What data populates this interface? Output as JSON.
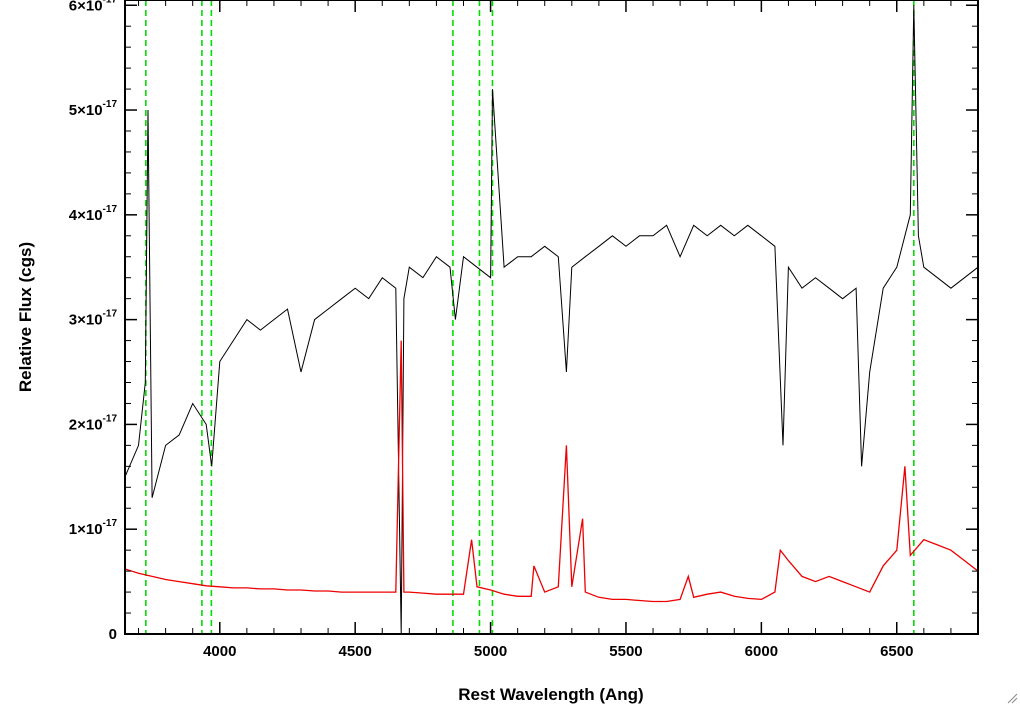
{
  "chart_data": {
    "type": "line",
    "title": "",
    "xlabel": "Rest Wavelength (Ang)",
    "ylabel": "Relative Flux (cgs)",
    "xlim": [
      3650,
      6800
    ],
    "ylim": [
      0,
      6.05
    ],
    "y_scale_note": "×10^-17",
    "xticks": [
      4000,
      4500,
      5000,
      5500,
      6000,
      6500
    ],
    "yticks": [
      {
        "value": 0,
        "mantissa": "0",
        "times": "",
        "base": "",
        "exponent": ""
      },
      {
        "value": 1,
        "mantissa": "1",
        "times": "×",
        "base": "10",
        "exponent": "-17"
      },
      {
        "value": 2,
        "mantissa": "2",
        "times": "×",
        "base": "10",
        "exponent": "-17"
      },
      {
        "value": 3,
        "mantissa": "3",
        "times": "×",
        "base": "10",
        "exponent": "-17"
      },
      {
        "value": 4,
        "mantissa": "4",
        "times": "×",
        "base": "10",
        "exponent": "-17"
      },
      {
        "value": 5,
        "mantissa": "5",
        "times": "×",
        "base": "10",
        "exponent": "-17"
      },
      {
        "value": 6,
        "mantissa": "6",
        "times": "×",
        "base": "10",
        "exponent": "-17"
      }
    ],
    "series": [
      {
        "color": "#000000",
        "x": [
          3650,
          3700,
          3725,
          3735,
          3750,
          3800,
          3850,
          3900,
          3950,
          3970,
          4000,
          4050,
          4100,
          4150,
          4200,
          4250,
          4300,
          4350,
          4400,
          4450,
          4500,
          4550,
          4600,
          4650,
          4670,
          4680,
          4700,
          4750,
          4800,
          4850,
          4870,
          4900,
          4950,
          5000,
          5007,
          5050,
          5100,
          5150,
          5200,
          5250,
          5280,
          5300,
          5350,
          5400,
          5450,
          5500,
          5550,
          5600,
          5650,
          5700,
          5750,
          5800,
          5850,
          5900,
          5950,
          6000,
          6050,
          6080,
          6100,
          6150,
          6200,
          6250,
          6300,
          6350,
          6370,
          6400,
          6450,
          6500,
          6550,
          6563,
          6580,
          6600,
          6650,
          6700,
          6750,
          6800
        ],
        "y": [
          1.5,
          1.8,
          2.4,
          5.0,
          1.3,
          1.8,
          1.9,
          2.2,
          2.0,
          1.6,
          2.6,
          2.8,
          3.0,
          2.9,
          3.0,
          3.1,
          2.5,
          3.0,
          3.1,
          3.2,
          3.3,
          3.2,
          3.4,
          3.3,
          0.0,
          3.2,
          3.5,
          3.4,
          3.6,
          3.5,
          3.0,
          3.6,
          3.5,
          3.4,
          5.2,
          3.5,
          3.6,
          3.6,
          3.7,
          3.6,
          2.5,
          3.5,
          3.6,
          3.7,
          3.8,
          3.7,
          3.8,
          3.8,
          3.9,
          3.6,
          3.9,
          3.8,
          3.9,
          3.8,
          3.9,
          3.8,
          3.7,
          1.8,
          3.5,
          3.3,
          3.4,
          3.3,
          3.2,
          3.3,
          1.6,
          2.5,
          3.3,
          3.5,
          4.0,
          6.0,
          3.8,
          3.5,
          3.4,
          3.3,
          3.4,
          3.5
        ]
      },
      {
        "color": "#ee0000",
        "x": [
          3650,
          3700,
          3750,
          3800,
          3850,
          3900,
          3950,
          4000,
          4050,
          4100,
          4150,
          4200,
          4250,
          4300,
          4350,
          4400,
          4450,
          4500,
          4550,
          4600,
          4650,
          4670,
          4680,
          4700,
          4750,
          4800,
          4850,
          4900,
          4930,
          4950,
          5000,
          5050,
          5100,
          5150,
          5160,
          5200,
          5250,
          5280,
          5300,
          5340,
          5350,
          5400,
          5450,
          5500,
          5550,
          5600,
          5650,
          5700,
          5730,
          5750,
          5800,
          5850,
          5900,
          5950,
          6000,
          6050,
          6070,
          6100,
          6150,
          6200,
          6250,
          6300,
          6350,
          6400,
          6450,
          6500,
          6530,
          6550,
          6600,
          6650,
          6700,
          6750,
          6800
        ],
        "y": [
          0.62,
          0.58,
          0.55,
          0.52,
          0.5,
          0.48,
          0.46,
          0.45,
          0.44,
          0.44,
          0.43,
          0.43,
          0.42,
          0.42,
          0.41,
          0.41,
          0.4,
          0.4,
          0.4,
          0.4,
          0.4,
          2.8,
          0.4,
          0.4,
          0.39,
          0.38,
          0.38,
          0.38,
          0.9,
          0.45,
          0.42,
          0.38,
          0.36,
          0.36,
          0.65,
          0.4,
          0.45,
          1.8,
          0.45,
          1.1,
          0.4,
          0.35,
          0.33,
          0.33,
          0.32,
          0.31,
          0.31,
          0.33,
          0.55,
          0.35,
          0.38,
          0.4,
          0.36,
          0.34,
          0.33,
          0.4,
          0.8,
          0.7,
          0.55,
          0.5,
          0.55,
          0.5,
          0.45,
          0.4,
          0.65,
          0.8,
          1.6,
          0.75,
          0.9,
          0.85,
          0.8,
          0.7,
          0.6
        ]
      }
    ],
    "reference_lines": {
      "color": "#00dd00",
      "style": "dashed",
      "x": [
        3727,
        3934,
        3969,
        4861,
        4959,
        5007,
        6563
      ]
    },
    "grid": false,
    "legend": "none"
  }
}
